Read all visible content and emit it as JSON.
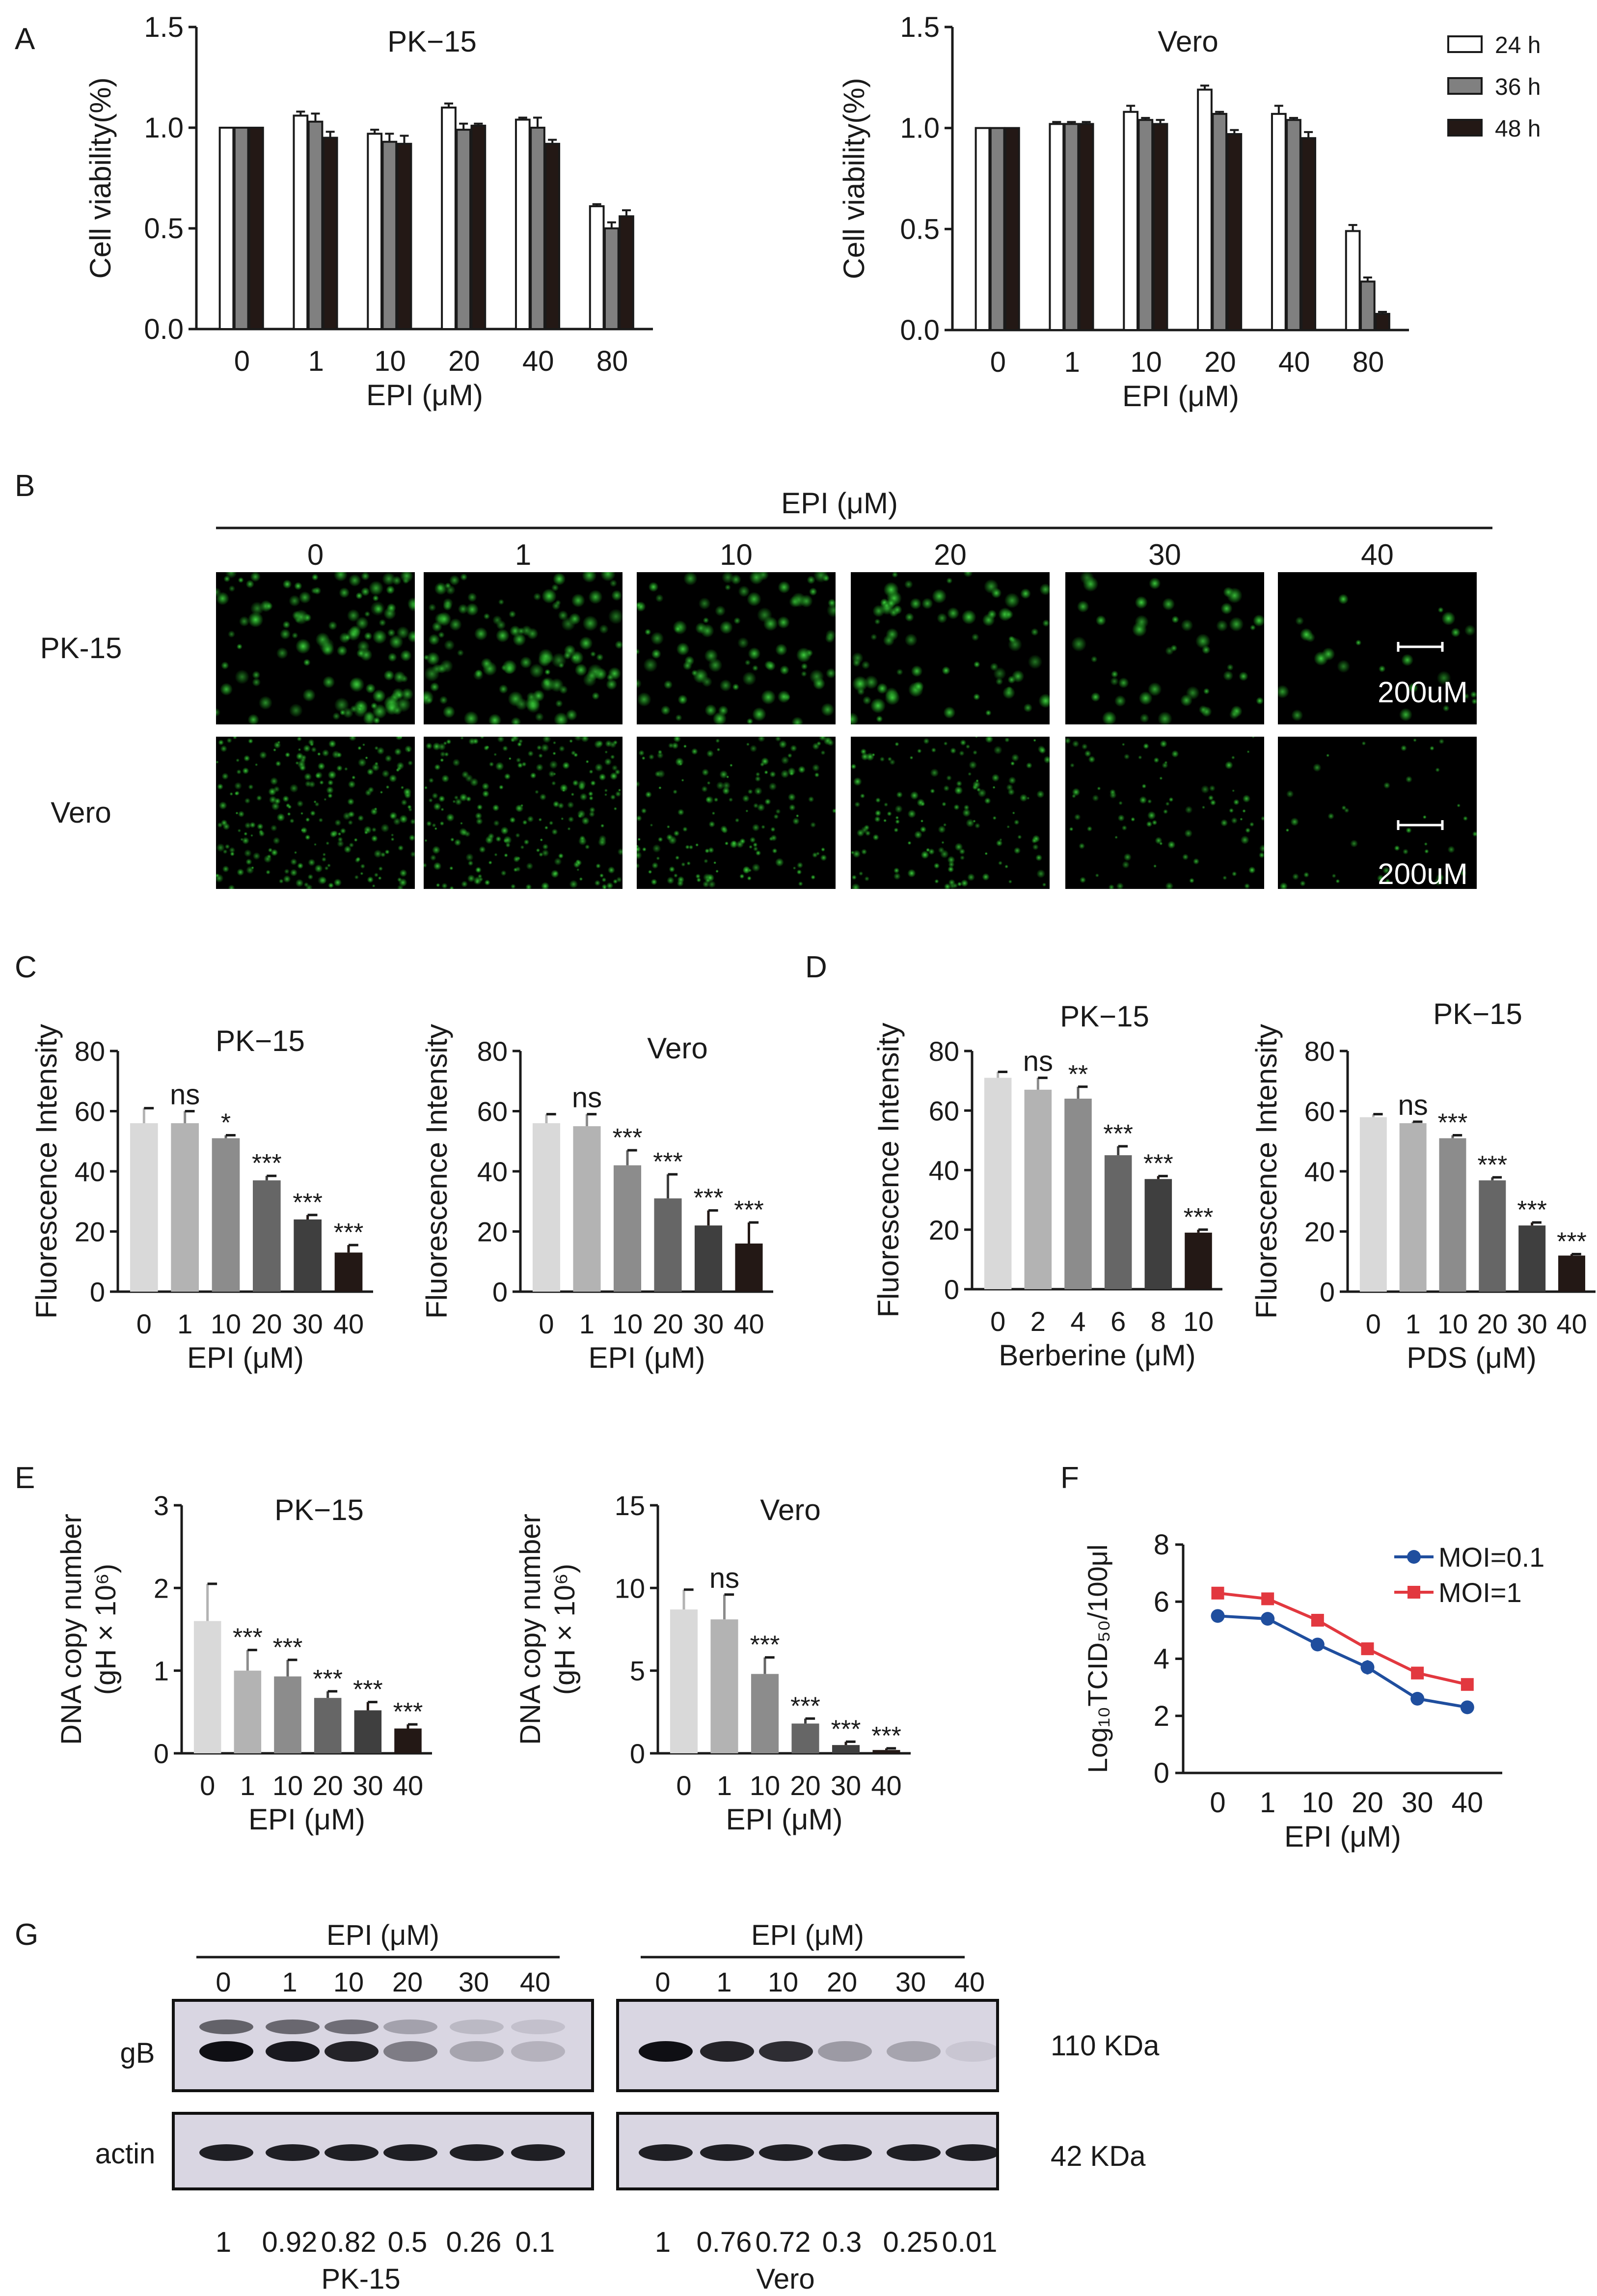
{
  "panel_letters": [
    "A",
    "B",
    "C",
    "D",
    "E",
    "F",
    "G"
  ],
  "colors": {
    "white_bar": "#ffffff",
    "grey_bar": "#808080",
    "black_bar": "#231815",
    "moi01": "#1f4e9e",
    "moi1": "#e2383f",
    "micro_green": "#3fd13f"
  },
  "panelA": {
    "legend": [
      "24 h",
      "36 h",
      "48 h"
    ],
    "ylabel": "Cell viability(%)",
    "xlabel": "EPI (μM)"
  },
  "panelB": {
    "header": "EPI (μM)",
    "columns": [
      "0",
      "1",
      "10",
      "20",
      "30",
      "40"
    ],
    "rows": [
      "PK-15",
      "Vero"
    ],
    "scale_bar": "200uM",
    "green_density": [
      1.0,
      0.95,
      0.7,
      0.6,
      0.35,
      0.15
    ]
  },
  "panelG": {
    "header": "EPI (μM)",
    "lanes": [
      "0",
      "1",
      "10",
      "20",
      "30",
      "40"
    ],
    "row_labels": [
      "gB",
      "actin"
    ],
    "sizes": [
      "110 KDa",
      "42 KDa"
    ],
    "pk15_ratios": [
      "1",
      "0.92",
      "0.82",
      "0.5",
      "0.26",
      "0.1"
    ],
    "vero_ratios": [
      "1",
      "0.76",
      "0.72",
      "0.3",
      "0.25",
      "0.01"
    ],
    "pk15_label": "PK-15",
    "vero_label": "Vero"
  },
  "chart_data": [
    {
      "id": "A1",
      "type": "bar",
      "title": "PK−15",
      "xlabel": "EPI (μM)",
      "ylabel": "Cell viability(%)",
      "categories": [
        "0",
        "1",
        "10",
        "20",
        "40",
        "80"
      ],
      "ylim": [
        0,
        1.5
      ],
      "yticks": [
        "0.0",
        "0.5",
        "1.0",
        "1.5"
      ],
      "series": [
        {
          "name": "24 h",
          "values": [
            1.0,
            1.06,
            0.97,
            1.1,
            1.04,
            0.61
          ],
          "err": [
            0,
            0.02,
            0.02,
            0.02,
            0.01,
            0.01
          ]
        },
        {
          "name": "36 h",
          "values": [
            1.0,
            1.03,
            0.93,
            0.99,
            1.0,
            0.5
          ],
          "err": [
            0,
            0.04,
            0.04,
            0.03,
            0.05,
            0.03
          ]
        },
        {
          "name": "48 h",
          "values": [
            1.0,
            0.95,
            0.92,
            1.01,
            0.92,
            0.56
          ],
          "err": [
            0,
            0.03,
            0.04,
            0.01,
            0.02,
            0.03
          ]
        }
      ]
    },
    {
      "id": "A2",
      "type": "bar",
      "title": "Vero",
      "xlabel": "EPI (μM)",
      "ylabel": "Cell viability(%)",
      "categories": [
        "0",
        "1",
        "10",
        "20",
        "40",
        "80"
      ],
      "ylim": [
        0,
        1.5
      ],
      "yticks": [
        "0.0",
        "0.5",
        "1.0",
        "1.5"
      ],
      "series": [
        {
          "name": "24 h",
          "values": [
            1.0,
            1.02,
            1.08,
            1.19,
            1.07,
            0.49
          ],
          "err": [
            0,
            0.01,
            0.03,
            0.02,
            0.04,
            0.03
          ]
        },
        {
          "name": "36 h",
          "values": [
            1.0,
            1.02,
            1.04,
            1.07,
            1.04,
            0.24
          ],
          "err": [
            0,
            0.01,
            0.01,
            0.01,
            0.01,
            0.02
          ]
        },
        {
          "name": "48 h",
          "values": [
            1.0,
            1.02,
            1.02,
            0.97,
            0.95,
            0.08
          ],
          "err": [
            0,
            0.01,
            0.02,
            0.02,
            0.03,
            0.01
          ]
        }
      ]
    },
    {
      "id": "C1",
      "type": "bar",
      "title": "PK−15",
      "xlabel": "EPI (μM)",
      "ylabel": "Fluorescence Intensity",
      "categories": [
        "0",
        "1",
        "10",
        "20",
        "30",
        "40"
      ],
      "ylim": [
        0,
        80
      ],
      "yticks": [
        "0",
        "20",
        "40",
        "60",
        "80"
      ],
      "values": [
        56,
        56,
        51,
        37,
        24,
        13
      ],
      "err": [
        5,
        4,
        1,
        1.5,
        1.5,
        2.5
      ],
      "sig": [
        "",
        "ns",
        "*",
        "***",
        "***",
        "***"
      ]
    },
    {
      "id": "C2",
      "type": "bar",
      "title": "Vero",
      "xlabel": "EPI (μM)",
      "ylabel": "Fluorescence Intensity",
      "categories": [
        "0",
        "1",
        "10",
        "20",
        "30",
        "40"
      ],
      "ylim": [
        0,
        80
      ],
      "yticks": [
        "0",
        "20",
        "40",
        "60",
        "80"
      ],
      "values": [
        56,
        55,
        42,
        31,
        22,
        16
      ],
      "err": [
        3,
        4,
        5,
        8,
        5,
        7
      ],
      "sig": [
        "",
        "ns",
        "***",
        "***",
        "***",
        "***"
      ]
    },
    {
      "id": "D1",
      "type": "bar",
      "title": "PK−15",
      "xlabel": "Berberine (μM)",
      "ylabel": "Fluorescence Intensity",
      "categories": [
        "0",
        "2",
        "4",
        "6",
        "8",
        "10"
      ],
      "ylim": [
        0,
        80
      ],
      "yticks": [
        "0",
        "20",
        "40",
        "60",
        "80"
      ],
      "values": [
        71,
        67,
        64,
        45,
        37,
        19
      ],
      "err": [
        2,
        4,
        4,
        3,
        1,
        1
      ],
      "sig": [
        "",
        "ns",
        "**",
        "***",
        "***",
        "***"
      ]
    },
    {
      "id": "D2",
      "type": "bar",
      "title": "PK−15",
      "xlabel": "PDS (μM)",
      "ylabel": "Fluorescence Intensity",
      "categories": [
        "0",
        "1",
        "10",
        "20",
        "30",
        "40"
      ],
      "ylim": [
        0,
        80
      ],
      "yticks": [
        "0",
        "20",
        "40",
        "60",
        "80"
      ],
      "values": [
        58,
        56,
        51,
        37,
        22,
        12
      ],
      "err": [
        1,
        0.5,
        1,
        1,
        1,
        0.5
      ],
      "sig": [
        "",
        "ns",
        "***",
        "***",
        "***",
        "***"
      ]
    },
    {
      "id": "E1",
      "type": "bar",
      "title": "PK−15",
      "xlabel": "EPI (μM)",
      "ylabel": [
        "DNA copy number",
        "(gH × 10⁶)"
      ],
      "categories": [
        "0",
        "1",
        "10",
        "20",
        "30",
        "40"
      ],
      "ylim": [
        0,
        3
      ],
      "yticks": [
        "0",
        "1",
        "2",
        "3"
      ],
      "values": [
        1.6,
        1.0,
        0.93,
        0.67,
        0.52,
        0.3
      ],
      "err": [
        0.45,
        0.25,
        0.2,
        0.08,
        0.1,
        0.05
      ],
      "sig": [
        "",
        "***",
        "***",
        "***",
        "***",
        "***"
      ]
    },
    {
      "id": "E2",
      "type": "bar",
      "title": "Vero",
      "xlabel": "EPI (μM)",
      "ylabel": [
        "DNA copy number",
        "(gH × 10⁶)"
      ],
      "categories": [
        "0",
        "1",
        "10",
        "20",
        "30",
        "40"
      ],
      "ylim": [
        0,
        15
      ],
      "yticks": [
        "0",
        "5",
        "10",
        "15"
      ],
      "values": [
        8.7,
        8.1,
        4.8,
        1.8,
        0.5,
        0.2
      ],
      "err": [
        1.2,
        1.5,
        1.0,
        0.3,
        0.2,
        0.1
      ],
      "sig": [
        "",
        "ns",
        "***",
        "***",
        "***",
        "***"
      ]
    },
    {
      "id": "F",
      "type": "line",
      "title": "",
      "xlabel": "EPI (μM)",
      "ylabel": "Log₁₀TCID₅₀/100μl",
      "categories": [
        "0",
        "1",
        "10",
        "20",
        "30",
        "40"
      ],
      "ylim": [
        0,
        8
      ],
      "yticks": [
        "0",
        "2",
        "4",
        "6",
        "8"
      ],
      "series": [
        {
          "name": "MOI=0.1",
          "values": [
            5.5,
            5.4,
            4.5,
            3.7,
            2.6,
            2.3
          ],
          "err": [
            0,
            0.1,
            0.15,
            0.25,
            0.05,
            0.05
          ]
        },
        {
          "name": "MOI=1",
          "values": [
            6.3,
            6.1,
            5.35,
            4.35,
            3.5,
            3.1
          ],
          "err": [
            0,
            0.1,
            0.1,
            0.1,
            0.1,
            0.05
          ]
        }
      ]
    }
  ]
}
